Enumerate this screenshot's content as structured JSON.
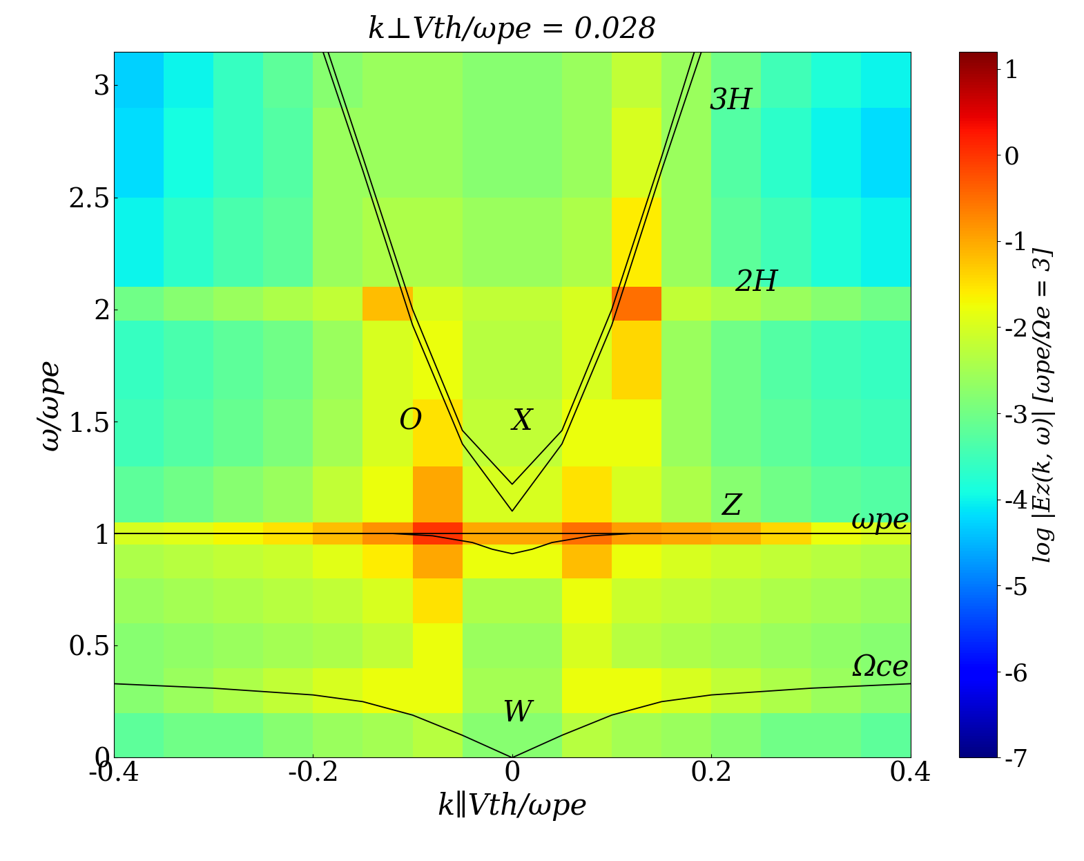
{
  "chart_data": {
    "type": "heatmap",
    "title": "k⊥Vth/ωpe = 0.028",
    "x_label": "k∥Vth/ωpe",
    "y_label": "ω/ωpe",
    "xlim": [
      -0.4,
      0.4
    ],
    "ylim": [
      0,
      3.15
    ],
    "xticks": [
      -0.4,
      -0.2,
      0,
      0.2,
      0.4
    ],
    "yticks": [
      0,
      0.5,
      1,
      1.5,
      2,
      2.5,
      3
    ],
    "x_edges": [
      -0.4,
      -0.35,
      -0.3,
      -0.25,
      -0.2,
      -0.15,
      -0.1,
      -0.05,
      0,
      0.05,
      0.1,
      0.15,
      0.2,
      0.25,
      0.3,
      0.35,
      0.4
    ],
    "y_edges": [
      0,
      0.2,
      0.4,
      0.6,
      0.8,
      0.95,
      1.05,
      1.3,
      1.6,
      1.95,
      2.1,
      2.5,
      2.9,
      3.15
    ],
    "cells": [
      [
        -3.2,
        -3.0,
        -3.0,
        -2.8,
        -2.6,
        -2.5,
        -2.3,
        -2.8,
        -2.8,
        -2.3,
        -2.5,
        -2.6,
        -2.8,
        -3.0,
        -3.0,
        -3.2
      ],
      [
        -2.8,
        -2.6,
        -2.4,
        -2.2,
        -2.0,
        -1.8,
        -1.8,
        -2.5,
        -2.5,
        -1.8,
        -1.8,
        -2.0,
        -2.2,
        -2.4,
        -2.6,
        -2.8
      ],
      [
        -2.8,
        -2.7,
        -2.6,
        -2.5,
        -2.4,
        -2.2,
        -1.8,
        -2.6,
        -2.6,
        -2.0,
        -2.3,
        -2.4,
        -2.5,
        -2.6,
        -2.7,
        -2.8
      ],
      [
        -2.6,
        -2.5,
        -2.4,
        -2.3,
        -2.2,
        -2.0,
        -1.5,
        -2.4,
        -2.4,
        -1.8,
        -2.1,
        -2.2,
        -2.3,
        -2.4,
        -2.5,
        -2.6
      ],
      [
        -2.4,
        -2.3,
        -2.2,
        -2.1,
        -1.9,
        -1.6,
        -1.0,
        -1.8,
        -1.8,
        -1.2,
        -1.8,
        -2.0,
        -2.1,
        -2.2,
        -2.3,
        -2.4
      ],
      [
        -2.0,
        -1.9,
        -1.7,
        -1.5,
        -1.2,
        -0.8,
        0.0,
        -1.0,
        -1.0,
        -0.5,
        -0.9,
        -1.0,
        -1.1,
        -1.4,
        -1.8,
        -2.0
      ],
      [
        -3.2,
        -3.0,
        -2.8,
        -2.6,
        -2.2,
        -1.8,
        -1.0,
        -2.0,
        -2.0,
        -1.5,
        -2.0,
        -2.4,
        -2.8,
        -3.0,
        -3.2,
        -3.3
      ],
      [
        -3.5,
        -3.3,
        -3.1,
        -2.9,
        -2.5,
        -2.0,
        -1.5,
        -2.2,
        -2.2,
        -1.8,
        -1.8,
        -2.6,
        -3.0,
        -3.2,
        -3.4,
        -3.5
      ],
      [
        -3.6,
        -3.4,
        -3.2,
        -3.0,
        -2.6,
        -2.0,
        -1.8,
        -2.3,
        -2.3,
        -2.0,
        -1.4,
        -2.6,
        -3.0,
        -3.3,
        -3.5,
        -3.6
      ],
      [
        -3.0,
        -2.8,
        -2.6,
        -2.4,
        -2.2,
        -1.2,
        -2.0,
        -2.2,
        -2.2,
        -2.0,
        -0.5,
        -2.2,
        -2.4,
        -2.6,
        -2.8,
        -3.0
      ],
      [
        -4.0,
        -3.7,
        -3.4,
        -3.2,
        -2.6,
        -2.4,
        -2.4,
        -2.6,
        -2.6,
        -2.4,
        -1.6,
        -2.6,
        -3.2,
        -3.5,
        -3.8,
        -4.0
      ],
      [
        -4.2,
        -3.9,
        -3.6,
        -3.3,
        -2.6,
        -2.6,
        -2.6,
        -2.8,
        -2.8,
        -2.6,
        -2.0,
        -2.6,
        -3.3,
        -3.7,
        -4.0,
        -4.2
      ],
      [
        -4.3,
        -4.0,
        -3.6,
        -3.2,
        -2.8,
        -2.6,
        -2.6,
        -2.8,
        -2.8,
        -2.6,
        -2.2,
        -2.6,
        -3.0,
        -3.5,
        -3.8,
        -4.0
      ]
    ],
    "colorbar_label": "log |Ez(k, ω)| [ωpe/Ωe = 3]",
    "colorbar_lim": [
      -7,
      1.2
    ],
    "colorbar_ticks": [
      -7,
      -6,
      -5,
      -4,
      -3,
      -2,
      -1,
      0,
      1
    ],
    "series": [
      {
        "color": "#000000",
        "x": [
          -0.185,
          -0.15,
          -0.1,
          -0.05,
          0,
          0.05,
          0.1,
          0.15,
          0.183
        ],
        "values": [
          3.15,
          2.68,
          2.0,
          1.46,
          1.22,
          1.46,
          2.0,
          2.68,
          3.15
        ]
      },
      {
        "color": "#000000",
        "x": [
          -0.19,
          -0.15,
          -0.1,
          -0.05,
          0,
          0.05,
          0.1,
          0.15,
          0.19
        ],
        "values": [
          3.15,
          2.62,
          1.93,
          1.4,
          1.1,
          1.4,
          1.93,
          2.62,
          3.15
        ]
      },
      {
        "color": "#000000",
        "x": [
          -0.4,
          -0.12,
          -0.08,
          -0.04,
          -0.02,
          0,
          0.02,
          0.04,
          0.08,
          0.12,
          0.4
        ],
        "values": [
          1.0,
          1.0,
          0.99,
          0.96,
          0.93,
          0.91,
          0.93,
          0.96,
          0.99,
          1.0,
          1.0
        ]
      },
      {
        "color": "#000000",
        "x": [
          -0.4,
          0.4
        ],
        "values": [
          1.0,
          1.0
        ]
      },
      {
        "color": "#000000",
        "x": [
          -0.4,
          -0.3,
          -0.2,
          -0.15,
          -0.1,
          -0.05,
          0,
          0.05,
          0.1,
          0.15,
          0.2,
          0.3,
          0.4
        ],
        "values": [
          0.33,
          0.31,
          0.28,
          0.25,
          0.19,
          0.1,
          0,
          0.1,
          0.19,
          0.25,
          0.28,
          0.31,
          0.33
        ]
      }
    ],
    "annotations": [
      {
        "text": "3H",
        "x": 0.22,
        "y": 2.93
      },
      {
        "text": "2H",
        "x": 0.245,
        "y": 2.12
      },
      {
        "text": "O",
        "x": -0.102,
        "y": 1.5
      },
      {
        "text": "X",
        "x": 0.01,
        "y": 1.5
      },
      {
        "text": "Z",
        "x": 0.22,
        "y": 1.12
      },
      {
        "text": "W",
        "x": 0.005,
        "y": 0.2
      },
      {
        "text": "ωpe",
        "x": 0.37,
        "y": 1.06
      },
      {
        "text": "Ωce",
        "x": 0.37,
        "y": 0.4
      }
    ]
  }
}
